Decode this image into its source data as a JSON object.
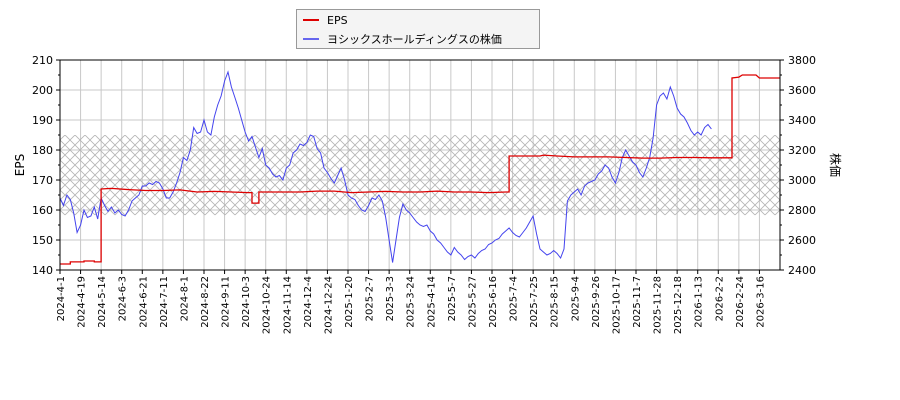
{
  "legend": {
    "items": [
      {
        "label": "EPS",
        "color": "#dd0000"
      },
      {
        "label": "ヨシックスホールディングスの株価",
        "color": "#4444ee"
      }
    ]
  },
  "axes": {
    "left_label": "EPS",
    "right_label": "株価"
  },
  "chart_data": {
    "type": "line",
    "title": "",
    "xlabel": "",
    "ylabel": "EPS",
    "y2label": "株価",
    "ylim": [
      140,
      210
    ],
    "y2lim": [
      2400,
      3800
    ],
    "yticks": [
      140,
      150,
      160,
      170,
      180,
      190,
      200,
      210
    ],
    "y2ticks": [
      2400,
      2600,
      2800,
      3000,
      3200,
      3400,
      3600,
      3800
    ],
    "grid": true,
    "legend_position": "top-center",
    "hatched_band": {
      "eps_range": [
        158.3,
        185
      ],
      "price_range": [
        2766,
        3300
      ]
    },
    "x_tick_labels": [
      "2024-4-1",
      "2024-4-19",
      "2024-5-14",
      "2024-6-3",
      "2024-6-21",
      "2024-7-11",
      "2024-8-1",
      "2024-8-22",
      "2024-9-11",
      "2024-10-3",
      "2024-10-24",
      "2024-11-14",
      "2024-12-4",
      "2024-12-24",
      "2025-1-20",
      "2025-2-7",
      "2025-3-3",
      "2025-3-24",
      "2025-4-14",
      "2025-5-7",
      "2025-5-27",
      "2025-6-16",
      "2025-7-4",
      "2025-7-25",
      "2025-8-15",
      "2025-9-4",
      "2025-9-26",
      "2025-10-17",
      "2025-11-7",
      "2025-11-28",
      "2025-12-18",
      "2026-1-13",
      "2026-2-2",
      "2026-2-24",
      "2026-3-16"
    ],
    "series": [
      {
        "name": "EPS",
        "axis": "left",
        "color": "#dd0000",
        "points": [
          [
            0,
            142
          ],
          [
            3,
            142
          ],
          [
            3,
            142.7
          ],
          [
            7,
            142.7
          ],
          [
            7,
            143
          ],
          [
            10,
            143
          ],
          [
            10,
            142.7
          ],
          [
            12,
            142.7
          ],
          [
            12,
            167
          ],
          [
            15,
            167.2
          ],
          [
            20,
            166.8
          ],
          [
            25,
            166.5
          ],
          [
            30,
            166.5
          ],
          [
            35,
            166.7
          ],
          [
            40,
            166
          ],
          [
            45,
            166.2
          ],
          [
            50,
            166
          ],
          [
            55,
            165.8
          ],
          [
            56,
            165.8
          ],
          [
            56,
            162.3
          ],
          [
            58,
            162.3
          ],
          [
            58,
            166
          ],
          [
            60,
            166
          ],
          [
            65,
            166
          ],
          [
            70,
            166
          ],
          [
            75,
            166.3
          ],
          [
            80,
            166.3
          ],
          [
            85,
            165.8
          ],
          [
            90,
            166
          ],
          [
            95,
            166.2
          ],
          [
            100,
            166
          ],
          [
            105,
            166
          ],
          [
            110,
            166.3
          ],
          [
            115,
            166
          ],
          [
            120,
            166
          ],
          [
            125,
            165.8
          ],
          [
            130,
            166
          ],
          [
            131,
            166
          ],
          [
            131,
            178
          ],
          [
            135,
            178
          ],
          [
            140,
            178
          ],
          [
            141,
            178.3
          ],
          [
            145,
            178
          ],
          [
            150,
            177.7
          ],
          [
            155,
            177.7
          ],
          [
            160,
            177.7
          ],
          [
            165,
            177.5
          ],
          [
            170,
            177.3
          ],
          [
            175,
            177.3
          ],
          [
            180,
            177.5
          ],
          [
            185,
            177.5
          ],
          [
            190,
            177.4
          ],
          [
            195,
            177.4
          ],
          [
            196,
            177.4
          ],
          [
            196,
            204
          ],
          [
            198,
            204.3
          ],
          [
            199,
            205
          ],
          [
            203,
            205
          ],
          [
            204,
            204
          ],
          [
            210,
            204
          ]
        ]
      },
      {
        "name": "ヨシックスホールディングスの株価",
        "axis": "right",
        "color": "#4444ee",
        "points": [
          [
            0,
            2880
          ],
          [
            1,
            2830
          ],
          [
            2,
            2900
          ],
          [
            3,
            2870
          ],
          [
            4,
            2780
          ],
          [
            5,
            2650
          ],
          [
            6,
            2700
          ],
          [
            7,
            2800
          ],
          [
            8,
            2750
          ],
          [
            9,
            2760
          ],
          [
            10,
            2820
          ],
          [
            11,
            2740
          ],
          [
            12,
            2880
          ],
          [
            13,
            2830
          ],
          [
            14,
            2790
          ],
          [
            15,
            2820
          ],
          [
            16,
            2780
          ],
          [
            17,
            2800
          ],
          [
            18,
            2770
          ],
          [
            19,
            2760
          ],
          [
            20,
            2800
          ],
          [
            21,
            2860
          ],
          [
            22,
            2880
          ],
          [
            23,
            2900
          ],
          [
            24,
            2960
          ],
          [
            25,
            2960
          ],
          [
            26,
            2980
          ],
          [
            27,
            2970
          ],
          [
            28,
            2990
          ],
          [
            29,
            2980
          ],
          [
            30,
            2940
          ],
          [
            31,
            2880
          ],
          [
            32,
            2880
          ],
          [
            33,
            2920
          ],
          [
            34,
            2980
          ],
          [
            35,
            3050
          ],
          [
            36,
            3150
          ],
          [
            37,
            3130
          ],
          [
            38,
            3200
          ],
          [
            39,
            3350
          ],
          [
            40,
            3310
          ],
          [
            41,
            3320
          ],
          [
            42,
            3400
          ],
          [
            43,
            3320
          ],
          [
            44,
            3300
          ],
          [
            45,
            3420
          ],
          [
            46,
            3500
          ],
          [
            47,
            3560
          ],
          [
            48,
            3660
          ],
          [
            49,
            3720
          ],
          [
            50,
            3620
          ],
          [
            51,
            3550
          ],
          [
            52,
            3480
          ],
          [
            53,
            3400
          ],
          [
            54,
            3320
          ],
          [
            55,
            3260
          ],
          [
            56,
            3290
          ],
          [
            57,
            3220
          ],
          [
            58,
            3150
          ],
          [
            59,
            3210
          ],
          [
            60,
            3100
          ],
          [
            61,
            3080
          ],
          [
            62,
            3040
          ],
          [
            63,
            3020
          ],
          [
            64,
            3030
          ],
          [
            65,
            3000
          ],
          [
            66,
            3080
          ],
          [
            67,
            3100
          ],
          [
            68,
            3180
          ],
          [
            69,
            3200
          ],
          [
            70,
            3240
          ],
          [
            71,
            3230
          ],
          [
            72,
            3250
          ],
          [
            73,
            3300
          ],
          [
            74,
            3290
          ],
          [
            75,
            3210
          ],
          [
            76,
            3180
          ],
          [
            77,
            3080
          ],
          [
            78,
            3050
          ],
          [
            79,
            3010
          ],
          [
            80,
            2980
          ],
          [
            81,
            3030
          ],
          [
            82,
            3080
          ],
          [
            83,
            3000
          ],
          [
            84,
            2900
          ],
          [
            85,
            2880
          ],
          [
            86,
            2870
          ],
          [
            87,
            2830
          ],
          [
            88,
            2800
          ],
          [
            89,
            2790
          ],
          [
            90,
            2830
          ],
          [
            91,
            2880
          ],
          [
            92,
            2870
          ],
          [
            93,
            2900
          ],
          [
            94,
            2860
          ],
          [
            95,
            2750
          ],
          [
            96,
            2600
          ],
          [
            97,
            2450
          ],
          [
            98,
            2600
          ],
          [
            99,
            2750
          ],
          [
            100,
            2840
          ],
          [
            101,
            2800
          ],
          [
            102,
            2780
          ],
          [
            103,
            2750
          ],
          [
            104,
            2720
          ],
          [
            105,
            2700
          ],
          [
            106,
            2690
          ],
          [
            107,
            2700
          ],
          [
            108,
            2660
          ],
          [
            109,
            2640
          ],
          [
            110,
            2600
          ],
          [
            111,
            2580
          ],
          [
            112,
            2550
          ],
          [
            113,
            2520
          ],
          [
            114,
            2500
          ],
          [
            115,
            2550
          ],
          [
            116,
            2520
          ],
          [
            117,
            2500
          ],
          [
            118,
            2470
          ],
          [
            119,
            2490
          ],
          [
            120,
            2500
          ],
          [
            121,
            2480
          ],
          [
            122,
            2510
          ],
          [
            123,
            2530
          ],
          [
            124,
            2540
          ],
          [
            125,
            2570
          ],
          [
            126,
            2580
          ],
          [
            127,
            2600
          ],
          [
            128,
            2610
          ],
          [
            129,
            2640
          ],
          [
            130,
            2660
          ],
          [
            131,
            2680
          ],
          [
            132,
            2650
          ],
          [
            133,
            2630
          ],
          [
            134,
            2620
          ],
          [
            135,
            2650
          ],
          [
            136,
            2680
          ],
          [
            137,
            2720
          ],
          [
            138,
            2760
          ],
          [
            139,
            2640
          ],
          [
            140,
            2540
          ],
          [
            141,
            2520
          ],
          [
            142,
            2500
          ],
          [
            143,
            2510
          ],
          [
            144,
            2530
          ],
          [
            145,
            2510
          ],
          [
            146,
            2480
          ],
          [
            147,
            2540
          ],
          [
            148,
            2860
          ],
          [
            149,
            2900
          ],
          [
            150,
            2920
          ],
          [
            151,
            2940
          ],
          [
            152,
            2900
          ],
          [
            153,
            2960
          ],
          [
            154,
            2980
          ],
          [
            155,
            2990
          ],
          [
            156,
            3000
          ],
          [
            157,
            3040
          ],
          [
            158,
            3060
          ],
          [
            159,
            3100
          ],
          [
            160,
            3080
          ],
          [
            161,
            3020
          ],
          [
            162,
            2980
          ],
          [
            163,
            3050
          ],
          [
            164,
            3150
          ],
          [
            165,
            3200
          ],
          [
            166,
            3160
          ],
          [
            167,
            3120
          ],
          [
            168,
            3100
          ],
          [
            169,
            3050
          ],
          [
            170,
            3020
          ],
          [
            171,
            3080
          ],
          [
            172,
            3150
          ],
          [
            173,
            3280
          ],
          [
            174,
            3500
          ],
          [
            175,
            3560
          ],
          [
            176,
            3580
          ],
          [
            177,
            3540
          ],
          [
            178,
            3620
          ],
          [
            179,
            3560
          ],
          [
            180,
            3480
          ],
          [
            181,
            3440
          ],
          [
            182,
            3420
          ],
          [
            183,
            3380
          ],
          [
            184,
            3330
          ],
          [
            185,
            3300
          ],
          [
            186,
            3320
          ],
          [
            187,
            3300
          ],
          [
            188,
            3350
          ],
          [
            189,
            3370
          ],
          [
            190,
            3340
          ]
        ]
      }
    ]
  }
}
